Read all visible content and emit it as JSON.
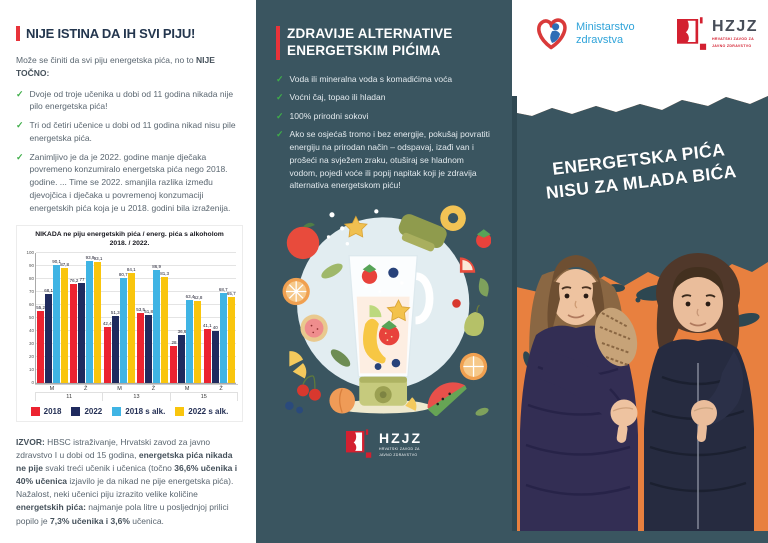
{
  "colors": {
    "accent_red": "#e8333a",
    "teal": "#3a5560",
    "orange": "#e8803f",
    "check_green": "#3fae49",
    "title_navy": "#23364e",
    "ministry_blue": "#2fa3d9",
    "hzjz_red": "#d32030",
    "bar_2018": "#ec2330",
    "bar_2022": "#1f2a5e",
    "bar_2018_alk": "#3fb4e4",
    "bar_2022_alk": "#f9c50d"
  },
  "panel_left": {
    "title": "NIJE ISTINA DA IH SVI PIJU!",
    "intro_plain": "Može se činiti da svi piju energetska pića, no to ",
    "intro_bold": "NIJE TOČNO:",
    "bullets": [
      "Dvoje od troje učenika u dobi od 11 godina nikada nije pilo energetska pića!",
      "Tri od četiri učenice u dobi od 11 godina nikad nisu pile energetska pića.",
      "Zanimljivo je da je 2022. godine manje dječaka povremeno konzumiralo energetska pića nego 2018. godine. ... Time se 2022. smanjila razlika između djevojčica i dječaka u povremenoj konzumaciji energetskih pića koja je u 2018. godini bila izraženija."
    ],
    "source": {
      "label": "IZVOR:",
      "p1": " HBSC istraživanje, Hrvatski zavod za javno zdravstvo I u dobi od 15 godina, ",
      "b1": "energetska pića nikada ne pije",
      "p2": " svaki treći učenik i učenica (točno ",
      "b2": "36,6% učenika i 40% učenica",
      "p3": " izjavilo je da nikad ne pije energetska pića). Nažalost, neki učenici piju izrazito velike količine ",
      "b3": "energetskih pića:",
      "p4": " najmanje pola litre u posljednjoj prilici popilo je ",
      "b4": "7,3% učenika i 3,6%",
      "p5": " učenica."
    }
  },
  "chart_data": {
    "type": "bar",
    "title_line1": "NIKADA ne piju energetskih pića / energ. pića s alkoholom",
    "title_line2": "2018. / 2022.",
    "categories": [
      "M 11",
      "Ž 11",
      "M 13",
      "Ž 13",
      "M 15",
      "Ž 15"
    ],
    "sex_labels": [
      "M",
      "Ž",
      "M",
      "Ž",
      "M",
      "Ž"
    ],
    "age_groups": [
      "11",
      "13",
      "15"
    ],
    "series": [
      {
        "name": "2018",
        "color": "#ec2330",
        "values": [
          55.2,
          76.2,
          42.4,
          53.5,
          28,
          41.1
        ]
      },
      {
        "name": "2022",
        "color": "#1f2a5e",
        "values": [
          68.1,
          77,
          51.3,
          51.8,
          36.6,
          40
        ]
      },
      {
        "name": "2018 s alk.",
        "color": "#3fb4e4",
        "values": [
          90.1,
          93.9,
          80.7,
          86.9,
          63.4,
          68.7
        ]
      },
      {
        "name": "2022 s alk.",
        "color": "#f9c50d",
        "values": [
          87.8,
          93.1,
          84.1,
          81.3,
          62.8,
          65.7
        ]
      }
    ],
    "ylim": [
      0,
      100
    ],
    "yticks": [
      0,
      10,
      20,
      30,
      40,
      50,
      60,
      70,
      80,
      90,
      100
    ],
    "grid": true,
    "legend_position": "bottom"
  },
  "panel_middle": {
    "title_line1": "ZDRAVIJE ALTERNATIVE",
    "title_line2": "ENERGETSKIM PIĆIMA",
    "bullets": [
      "Voda ili mineralna voda s komadićima voća",
      "Voćni čaj, topao ili hladan",
      "100% prirodni sokovi",
      "Ako se osjećaš tromo i bez energije, pokušaj povratiti energiju na prirodan način – odspavaj, izađi van i prošeći na svježem zraku, otuširaj se hladnom vodom, pojedi voće ili popij napitak koji je zdravija alternativa energetskom piću!"
    ],
    "logo": {
      "text": "HZJZ",
      "caption_line1": "HRVATSKI ZAVOD ZA",
      "caption_line2": "JAVNO ZDRAVSTVO"
    }
  },
  "panel_right": {
    "ministry_logo": {
      "line1": "Ministarstvo",
      "line2": "zdravstva"
    },
    "hzjz_logo": {
      "text": "HZJZ",
      "caption_line1": "HRVATSKI ZAVOD ZA",
      "caption_line2": "JAVNO ZDRAVSTVO"
    },
    "banner_line1": "ENERGETSKA PIĆA",
    "banner_line2": "NISU ZA MLADA BIĆA"
  }
}
